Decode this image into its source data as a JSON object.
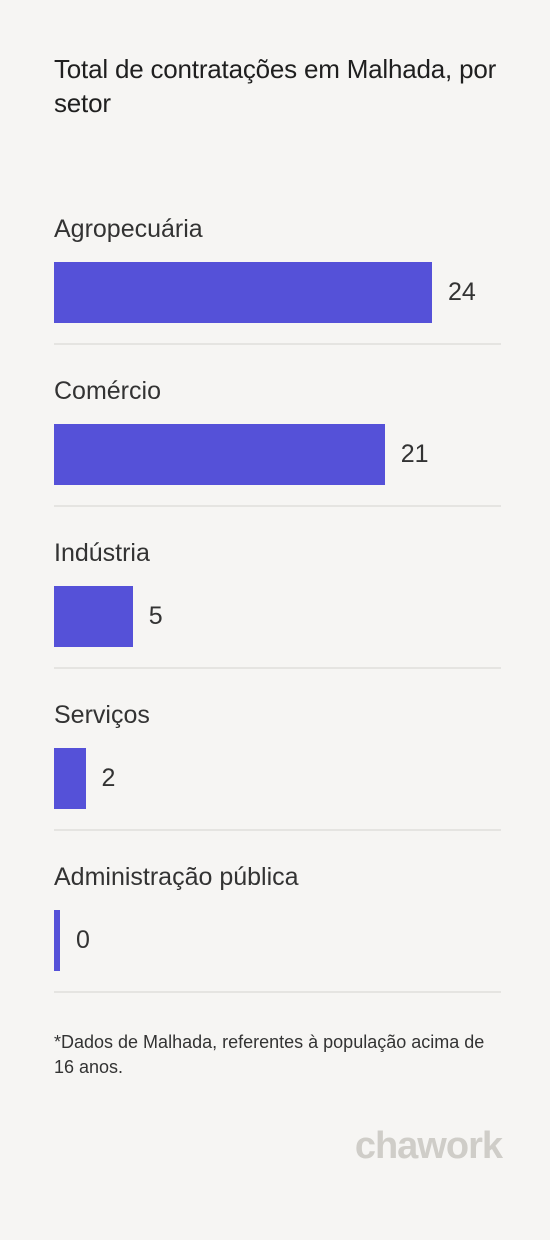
{
  "title": "Total de contratações em Malhada, por setor",
  "chart_data": {
    "type": "bar",
    "orientation": "horizontal",
    "categories": [
      "Agropecuária",
      "Comércio",
      "Indústria",
      "Serviços",
      "Administração pública"
    ],
    "values": [
      24,
      21,
      5,
      2,
      0
    ],
    "xlim": [
      0,
      24
    ],
    "bar_color": "#5551d8",
    "grid": false
  },
  "footnote": "*Dados de Malhada, referentes à população acima de 16 anos.",
  "logo": "chawork",
  "colors": {
    "background": "#f6f5f3",
    "bar": "#5551d8",
    "logo": "#cfcdc8"
  }
}
